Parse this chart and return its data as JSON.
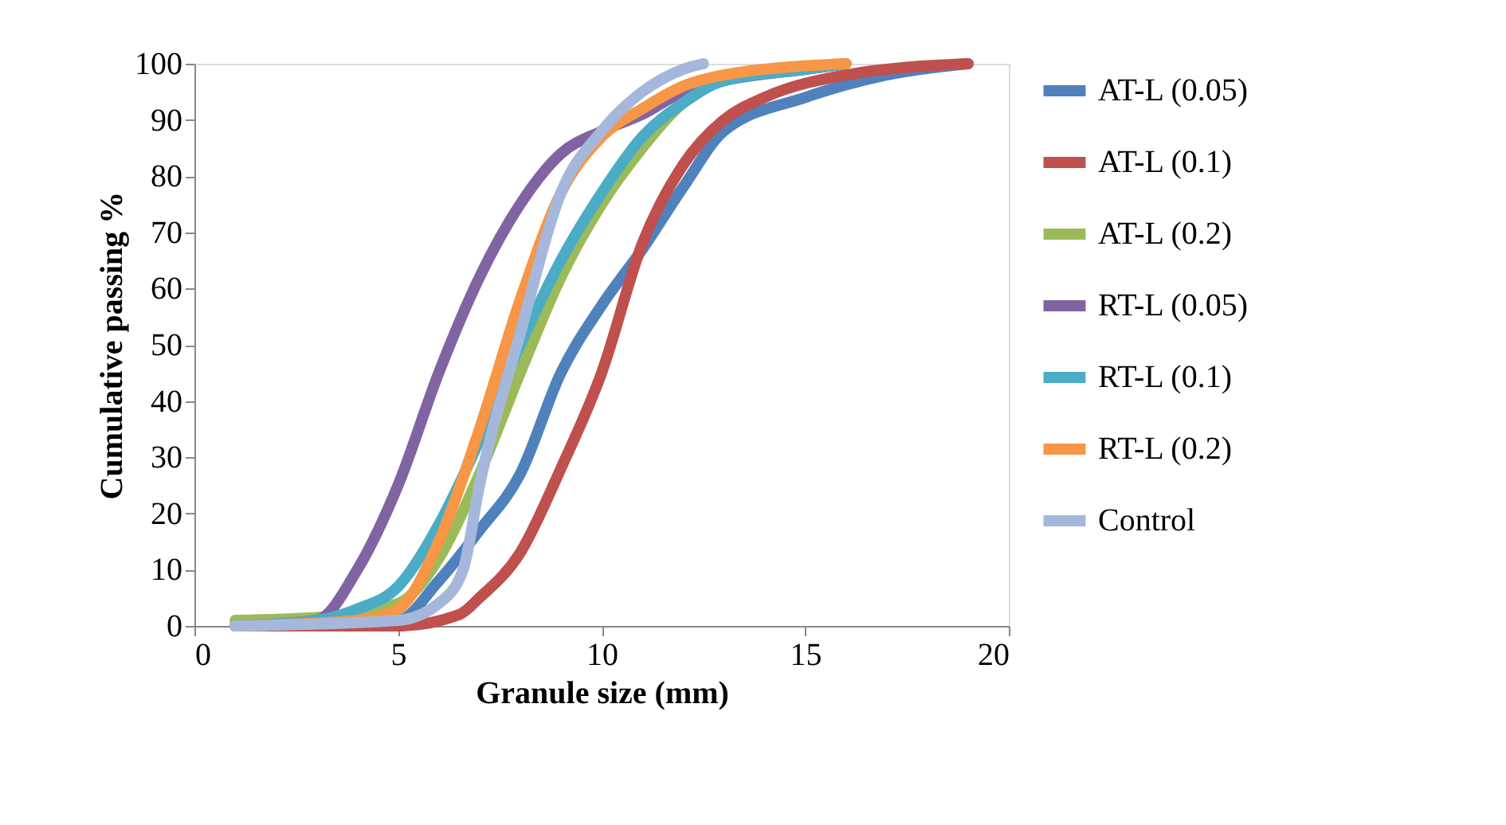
{
  "chart_data": {
    "type": "line",
    "xlabel": "Granule size (mm)",
    "ylabel": "Cumulative passing %",
    "xlim": [
      0,
      20
    ],
    "xticks": [
      0,
      5,
      10,
      15,
      20
    ],
    "ylim": [
      0,
      100
    ],
    "yticks": [
      0,
      10,
      20,
      30,
      40,
      50,
      60,
      70,
      80,
      90,
      100
    ],
    "grid": false,
    "legend": "right",
    "marker": "none",
    "line_style": "solid",
    "series": [
      {
        "name": "AT-L (0.05)",
        "color": "#4f81bd",
        "x": [
          1,
          5,
          6,
          7,
          8,
          9,
          10,
          11,
          12,
          13,
          15,
          17,
          19
        ],
        "values": [
          0,
          1,
          8,
          17,
          27,
          45,
          57,
          67,
          78,
          88,
          94,
          98,
          100
        ]
      },
      {
        "name": "AT-L (0.1)",
        "color": "#c0504d",
        "x": [
          1,
          5,
          6.5,
          7,
          8,
          9,
          10,
          11,
          12,
          13,
          14,
          16,
          19
        ],
        "values": [
          0,
          0,
          2,
          5,
          13,
          28,
          45,
          68,
          82,
          90,
          94,
          98,
          100
        ]
      },
      {
        "name": "AT-L (0.2)",
        "color": "#9bbb59",
        "x": [
          1,
          3,
          5,
          6,
          7,
          8,
          9,
          10,
          11,
          12,
          13,
          15,
          16
        ],
        "values": [
          1,
          1.5,
          4,
          12,
          27,
          45,
          62,
          75,
          85,
          93,
          97,
          99,
          100
        ]
      },
      {
        "name": "RT-L (0.05)",
        "color": "#8064a2",
        "x": [
          1,
          3,
          4,
          5,
          6,
          7,
          8,
          9,
          10,
          11,
          12,
          13,
          15,
          16
        ],
        "values": [
          0,
          1,
          10,
          25,
          45,
          62,
          75,
          84,
          88,
          91,
          95,
          97,
          99,
          100
        ]
      },
      {
        "name": "RT-L (0.1)",
        "color": "#4bacc6",
        "x": [
          1,
          3,
          4,
          5,
          6,
          7,
          8,
          9,
          10,
          11,
          12,
          13,
          15,
          16
        ],
        "values": [
          0,
          1,
          3,
          7,
          18,
          33,
          50,
          65,
          77,
          87,
          93,
          97,
          99,
          100
        ]
      },
      {
        "name": "RT-L (0.2)",
        "color": "#f79646",
        "x": [
          1,
          4,
          5,
          6,
          7,
          8,
          9,
          10,
          11,
          12,
          13,
          16
        ],
        "values": [
          0,
          1,
          3,
          15,
          35,
          58,
          77,
          87,
          92,
          96,
          98,
          100
        ]
      },
      {
        "name": "Control",
        "color": "#a5b8db",
        "x": [
          1,
          5,
          6,
          6.6,
          7,
          8,
          9,
          10,
          11,
          12,
          12.5
        ],
        "values": [
          0,
          1,
          4,
          10,
          25,
          52,
          77,
          88,
          95,
          99,
          100
        ]
      }
    ]
  }
}
